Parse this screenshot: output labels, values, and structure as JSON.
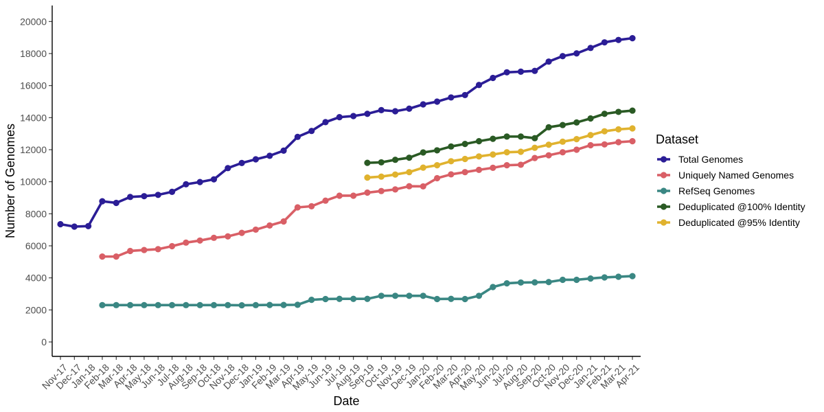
{
  "chart_data": {
    "type": "line",
    "xlabel": "Date",
    "ylabel": "Number of Genomes",
    "ylim": [
      -900,
      21000
    ],
    "yticks": [
      0,
      2000,
      4000,
      6000,
      8000,
      10000,
      12000,
      14000,
      16000,
      18000,
      20000
    ],
    "grid": false,
    "legend": {
      "title": "Dataset",
      "placement": "right"
    },
    "categories": [
      "Nov-17",
      "Dec-17",
      "Jan-18",
      "Feb-18",
      "Mar-18",
      "Apr-18",
      "May-18",
      "Jun-18",
      "Jul-18",
      "Aug-18",
      "Sep-18",
      "Oct-18",
      "Nov-18",
      "Dec-18",
      "Jan-19",
      "Feb-19",
      "Mar-19",
      "Apr-19",
      "May-19",
      "Jun-19",
      "Jul-19",
      "Aug-19",
      "Sep-19",
      "Oct-19",
      "Nov-19",
      "Dec-19",
      "Jan-20",
      "Feb-20",
      "Mar-20",
      "Apr-20",
      "May-20",
      "Jun-20",
      "Jul-20",
      "Aug-20",
      "Sep-20",
      "Oct-20",
      "Nov-20",
      "Dec-20",
      "Jan-21",
      "Feb-21",
      "Mar-21",
      "Apr-21"
    ],
    "series": [
      {
        "name": "Total Genomes",
        "color": "#2b1d96",
        "values": [
          7350,
          7200,
          7230,
          8780,
          8680,
          9050,
          9100,
          9180,
          9370,
          9840,
          9980,
          10150,
          10850,
          11170,
          11400,
          11620,
          11940,
          12800,
          13170,
          13720,
          14030,
          14100,
          14240,
          14470,
          14400,
          14560,
          14830,
          15000,
          15260,
          15410,
          16040,
          16480,
          16830,
          16870,
          16920,
          17500,
          17840,
          18010,
          18350,
          18700,
          18850,
          18960
        ]
      },
      {
        "name": "Uniquely Named Genomes",
        "color": "#d95f66",
        "values": [
          null,
          null,
          null,
          5330,
          5330,
          5680,
          5740,
          5790,
          5980,
          6200,
          6330,
          6500,
          6590,
          6810,
          7010,
          7270,
          7520,
          8400,
          8470,
          8820,
          9130,
          9130,
          9320,
          9420,
          9520,
          9720,
          9710,
          10220,
          10460,
          10600,
          10740,
          10870,
          11030,
          11060,
          11480,
          11650,
          11840,
          12000,
          12280,
          12330,
          12470,
          12530
        ]
      },
      {
        "name": "RefSeq Genomes",
        "color": "#3a8783",
        "values": [
          null,
          null,
          null,
          2300,
          2300,
          2300,
          2300,
          2300,
          2300,
          2300,
          2300,
          2300,
          2300,
          2290,
          2300,
          2310,
          2310,
          2320,
          2630,
          2680,
          2690,
          2690,
          2690,
          2880,
          2880,
          2880,
          2880,
          2680,
          2690,
          2680,
          2880,
          3430,
          3660,
          3710,
          3720,
          3740,
          3880,
          3880,
          3960,
          4030,
          4070,
          4110
        ]
      },
      {
        "name": "Deduplicated @100% Identity",
        "color": "#2a5a24",
        "values": [
          null,
          null,
          null,
          null,
          null,
          null,
          null,
          null,
          null,
          null,
          null,
          null,
          null,
          null,
          null,
          null,
          null,
          null,
          null,
          null,
          null,
          null,
          11180,
          11210,
          11370,
          11500,
          11830,
          11960,
          12200,
          12360,
          12530,
          12680,
          12820,
          12820,
          12720,
          13400,
          13540,
          13700,
          13950,
          14240,
          14360,
          14440
        ]
      },
      {
        "name": "Deduplicated @95% Identity",
        "color": "#e0b22e",
        "values": [
          null,
          null,
          null,
          null,
          null,
          null,
          null,
          null,
          null,
          null,
          null,
          null,
          null,
          null,
          null,
          null,
          null,
          null,
          null,
          null,
          null,
          null,
          10260,
          10320,
          10450,
          10600,
          10880,
          11030,
          11280,
          11420,
          11580,
          11700,
          11840,
          11870,
          12120,
          12310,
          12500,
          12660,
          12910,
          13150,
          13270,
          13330
        ]
      }
    ]
  }
}
